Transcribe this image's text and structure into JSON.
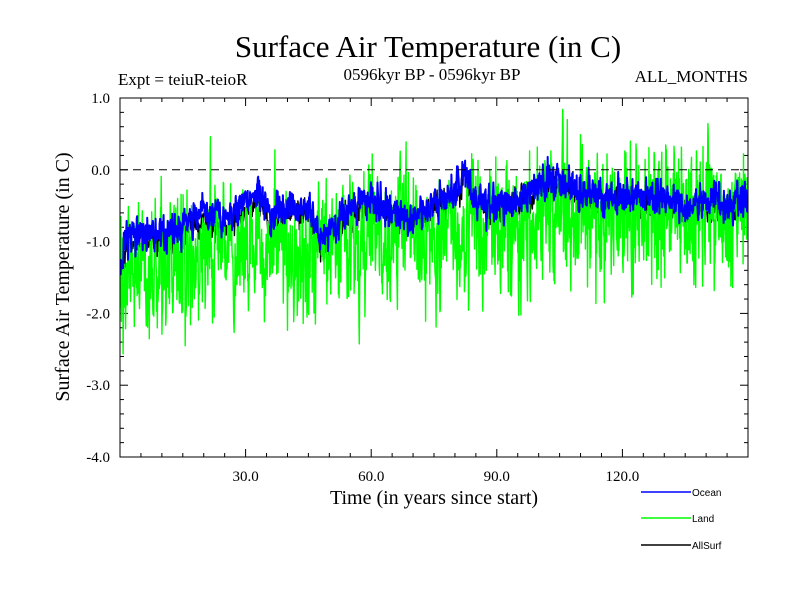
{
  "chart_data": {
    "type": "line",
    "title": "Surface Air Temperature (in C)",
    "subtitle_left": "Expt = teiuR-teioR",
    "subtitle_center": "0596kyr BP - 0596kyr BP",
    "subtitle_right": "ALL_MONTHS",
    "xlabel": "Time (in years since start)",
    "ylabel": "Surface Air Temperature (in C)",
    "xlim": [
      0,
      150
    ],
    "ylim": [
      -4.0,
      1.0
    ],
    "xticks": [
      30,
      60,
      90,
      120
    ],
    "xtick_labels": [
      "30.0",
      "60.0",
      "90.0",
      "120.0"
    ],
    "yticks": [
      -4.0,
      -3.0,
      -2.0,
      -1.0,
      0.0,
      1.0
    ],
    "ytick_labels": [
      "-4.0",
      "-3.0",
      "-2.0",
      "-1.0",
      "0.0",
      "1.0"
    ],
    "reference_line": 0.0,
    "samples_per_year": 12,
    "noise_seed": 7,
    "series": [
      {
        "name": "Ocean",
        "color": "#0000ff",
        "noise_amplitude": 0.12,
        "trend_x": [
          0,
          2,
          5,
          10,
          15,
          20,
          25,
          30,
          33,
          36,
          40,
          45,
          48,
          50,
          55,
          60,
          65,
          70,
          75,
          80,
          82,
          85,
          90,
          95,
          100,
          105,
          110,
          115,
          120,
          125,
          130,
          135,
          140,
          145,
          150
        ],
        "trend_y": [
          -1.3,
          -0.9,
          -0.85,
          -0.9,
          -0.8,
          -0.55,
          -0.75,
          -0.45,
          -0.3,
          -0.7,
          -0.5,
          -0.5,
          -0.95,
          -0.9,
          -0.5,
          -0.4,
          -0.6,
          -0.65,
          -0.5,
          -0.3,
          0.0,
          -0.45,
          -0.45,
          -0.4,
          -0.2,
          -0.15,
          -0.3,
          -0.35,
          -0.35,
          -0.4,
          -0.35,
          -0.5,
          -0.4,
          -0.5,
          -0.4
        ]
      },
      {
        "name": "Land",
        "color": "#00ff00",
        "noise_amplitude": 0.45,
        "trend_x": [
          0,
          3,
          8,
          15,
          25,
          35,
          45,
          55,
          65,
          75,
          85,
          95,
          105,
          115,
          125,
          135,
          145,
          150
        ],
        "trend_y": [
          -2.0,
          -1.4,
          -1.3,
          -1.3,
          -1.1,
          -1.1,
          -1.2,
          -1.0,
          -1.0,
          -1.0,
          -0.8,
          -0.8,
          -0.6,
          -0.6,
          -0.7,
          -0.7,
          -0.7,
          -0.6
        ]
      },
      {
        "name": "AllSurf",
        "color": "#000000",
        "noise_amplitude": 0.1,
        "trend_x": [
          0,
          2,
          5,
          10,
          15,
          20,
          25,
          30,
          33,
          36,
          40,
          45,
          48,
          50,
          55,
          60,
          65,
          70,
          75,
          80,
          82,
          85,
          90,
          95,
          100,
          105,
          110,
          115,
          120,
          125,
          130,
          135,
          140,
          145,
          150
        ],
        "trend_y": [
          -1.4,
          -1.0,
          -0.95,
          -1.0,
          -0.9,
          -0.65,
          -0.85,
          -0.55,
          -0.4,
          -0.8,
          -0.6,
          -0.6,
          -1.05,
          -1.0,
          -0.6,
          -0.5,
          -0.7,
          -0.75,
          -0.6,
          -0.4,
          -0.1,
          -0.55,
          -0.55,
          -0.5,
          -0.3,
          -0.25,
          -0.4,
          -0.45,
          -0.45,
          -0.5,
          -0.45,
          -0.6,
          -0.5,
          -0.6,
          -0.5
        ]
      }
    ],
    "draw_order": [
      "AllSurf",
      "Land",
      "Ocean"
    ]
  }
}
